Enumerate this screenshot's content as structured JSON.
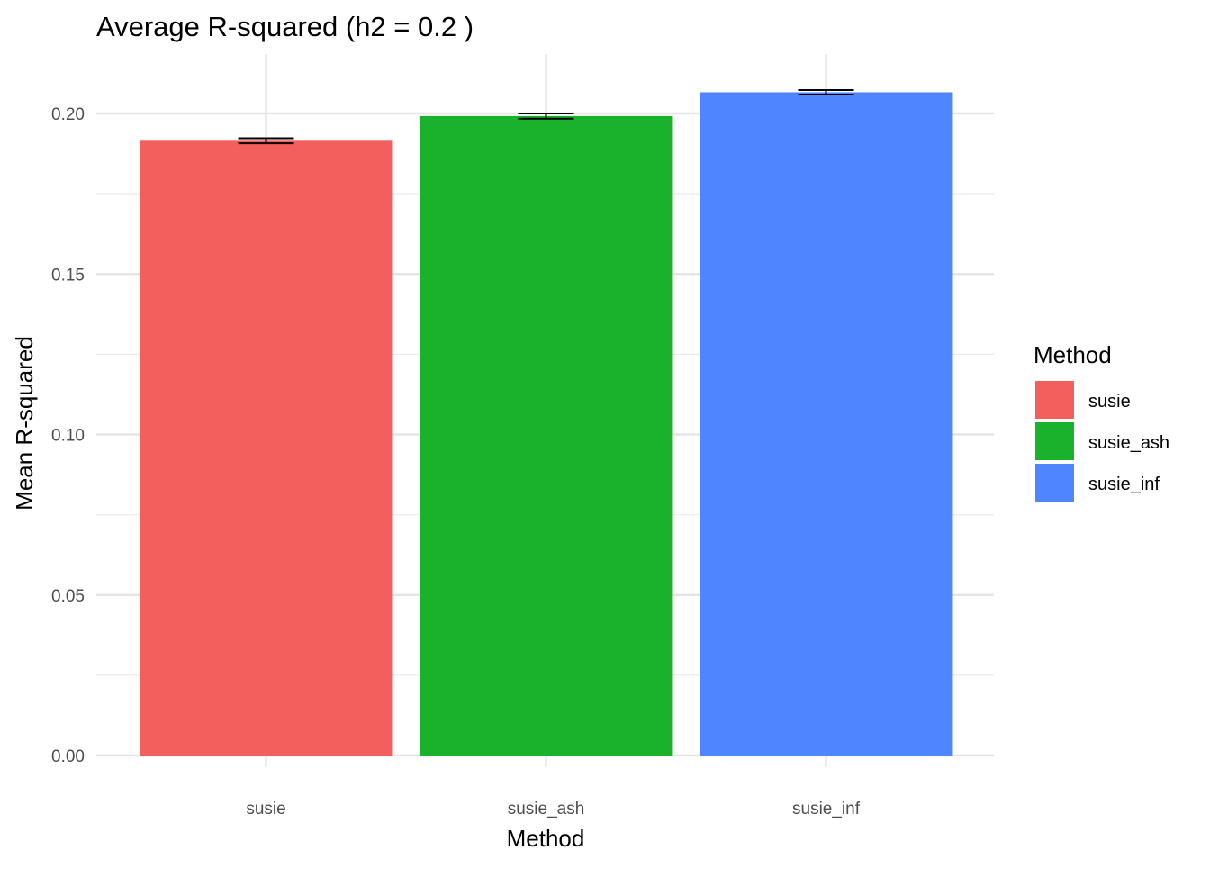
{
  "chart_data": {
    "type": "bar",
    "title": "Average R-squared (h2 = 0.2 )",
    "xlabel": "Method",
    "ylabel": "Mean R-squared",
    "categories": [
      "susie",
      "susie_ash",
      "susie_inf"
    ],
    "values": [
      0.1915,
      0.1992,
      0.2066
    ],
    "error": [
      0.0008,
      0.0008,
      0.0007
    ],
    "colors": [
      "#F25F5C",
      "#1AB22D",
      "#4F86FF"
    ],
    "ylim": [
      0,
      0.2125
    ],
    "yticks": [
      0.0,
      0.05,
      0.1,
      0.15,
      0.2
    ],
    "ytick_labels": [
      "0.00",
      "0.05",
      "0.10",
      "0.15",
      "0.20"
    ],
    "grid": true,
    "legend": {
      "title": "Method",
      "position": "right",
      "entries": [
        "susie",
        "susie_ash",
        "susie_inf"
      ]
    }
  }
}
